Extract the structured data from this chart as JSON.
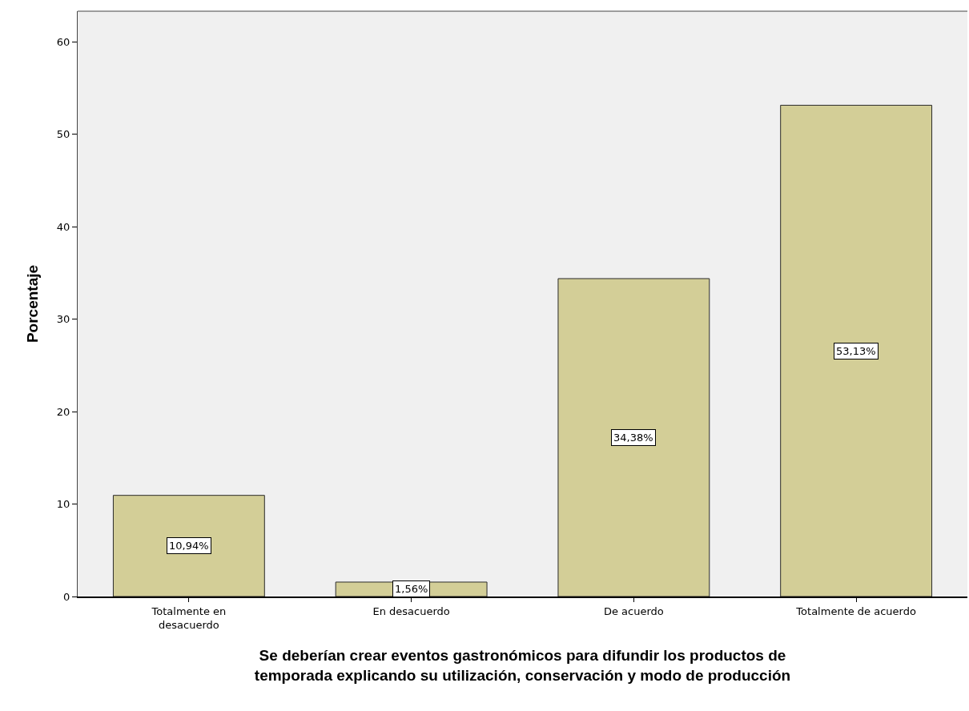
{
  "chart_data": {
    "type": "bar",
    "categories": [
      "Totalmente en\ndesacuerdo",
      "En desacuerdo",
      "De acuerdo",
      "Totalmente de acuerdo"
    ],
    "values": [
      10.94,
      1.56,
      34.38,
      53.13
    ],
    "value_labels": [
      "10,94%",
      "1,56%",
      "34,38%",
      "53,13%"
    ],
    "color": "#d3ce97",
    "xlabel": "Se deberían crear eventos gastronómicos para difundir los productos de\ntemporada explicando su utilización, conservación y modo de producción",
    "ylabel": "Porcentaje",
    "ylim": [
      0,
      63.3
    ],
    "yticks": [
      0,
      10,
      20,
      30,
      40,
      50,
      60
    ],
    "grid": false
  }
}
